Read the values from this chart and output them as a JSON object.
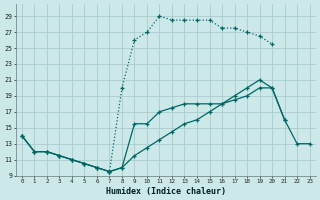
{
  "xlabel": "Humidex (Indice chaleur)",
  "bg_color": "#cce8e8",
  "grid_color": "#aacccc",
  "line_color": "#006666",
  "ylim": [
    9,
    30
  ],
  "xlim": [
    -0.5,
    23.5
  ],
  "yticks": [
    9,
    11,
    13,
    15,
    17,
    19,
    21,
    23,
    25,
    27,
    29
  ],
  "xticks": [
    0,
    1,
    2,
    3,
    4,
    5,
    6,
    7,
    8,
    9,
    10,
    11,
    12,
    13,
    14,
    15,
    16,
    17,
    18,
    19,
    20,
    21,
    22,
    23
  ],
  "curve_top_x": [
    0,
    1,
    2,
    3,
    4,
    5,
    6,
    7,
    8,
    9,
    10,
    11,
    12,
    13,
    14,
    15,
    16,
    17,
    18,
    19,
    20,
    21,
    22,
    23
  ],
  "curve_top_y": [
    14,
    12,
    12,
    11.5,
    11,
    10.5,
    10,
    9.5,
    20,
    26,
    27,
    29,
    28.5,
    28.5,
    28.5,
    28.5,
    27.5,
    27.5,
    27,
    26.5,
    25.5,
    null,
    null,
    null
  ],
  "curve_mid_x": [
    0,
    1,
    2,
    3,
    4,
    5,
    6,
    7,
    8,
    9,
    10,
    11,
    12,
    13,
    14,
    15,
    16,
    17,
    18,
    19,
    20,
    21,
    22,
    23
  ],
  "curve_mid_y": [
    14,
    12,
    12,
    11.5,
    11,
    10.5,
    10,
    9.5,
    10,
    15.5,
    15.5,
    17,
    17.5,
    18,
    18,
    18,
    18,
    18.5,
    19,
    20,
    20,
    16,
    null,
    null
  ],
  "curve_bot_x": [
    0,
    1,
    2,
    3,
    4,
    5,
    6,
    7,
    8,
    9,
    10,
    11,
    12,
    13,
    14,
    15,
    16,
    17,
    18,
    19,
    20,
    21,
    22,
    23
  ],
  "curve_bot_y": [
    14,
    12,
    12,
    11.5,
    11,
    10.5,
    10,
    9.5,
    10,
    11.5,
    12.5,
    13.5,
    14.5,
    15.5,
    16,
    17,
    18,
    19,
    20,
    21,
    20,
    16,
    13,
    13
  ]
}
